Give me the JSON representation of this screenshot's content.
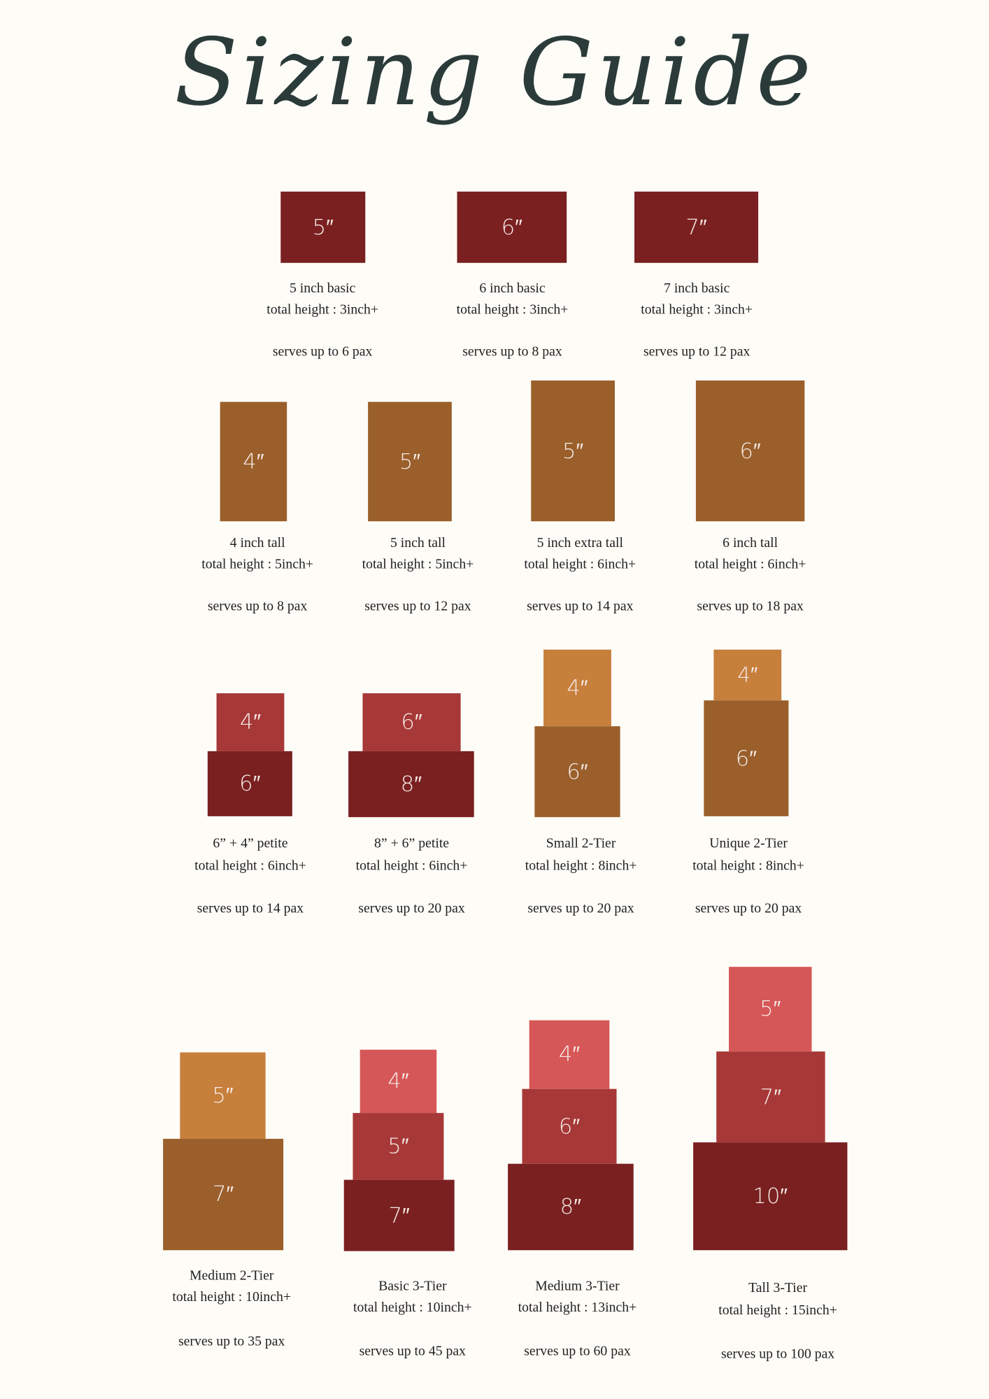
{
  "title": "Sizing Guide",
  "colors": {
    "background": "#fefcf7",
    "title": "#2b3b3a",
    "dark_red": "#7a2020",
    "brown": "#9a5f2b",
    "orange": "#c77f3c",
    "red": "#a73838",
    "coral": "#d65757"
  },
  "cakes": [
    {
      "name": "5 inch basic",
      "height": "total height : 3inch+",
      "serves": "serves up to 6 pax",
      "tiers": [
        {
          "label": "5″",
          "color": "#7a2020"
        }
      ]
    },
    {
      "name": "6 inch basic",
      "height": "total height : 3inch+",
      "serves": "serves up to 8 pax",
      "tiers": [
        {
          "label": "6″",
          "color": "#7a2020"
        }
      ]
    },
    {
      "name": "7 inch basic",
      "height": "total height : 3inch+",
      "serves": "serves up to 12 pax",
      "tiers": [
        {
          "label": "7″",
          "color": "#7a2020"
        }
      ]
    },
    {
      "name": "4 inch tall",
      "height": "total height : 5inch+",
      "serves": "serves up to 8 pax",
      "tiers": [
        {
          "label": "4″",
          "color": "#9a5f2b"
        }
      ]
    },
    {
      "name": "5 inch tall",
      "height": "total height : 5inch+",
      "serves": "serves up to 12 pax",
      "tiers": [
        {
          "label": "5″",
          "color": "#9a5f2b"
        }
      ]
    },
    {
      "name": "5 inch extra tall",
      "height": "total height : 6inch+",
      "serves": "serves up to 14 pax",
      "tiers": [
        {
          "label": "5″",
          "color": "#9a5f2b"
        }
      ]
    },
    {
      "name": "6 inch tall",
      "height": "total height : 6inch+",
      "serves": "serves up to 18 pax",
      "tiers": [
        {
          "label": "6″",
          "color": "#9a5f2b"
        }
      ]
    },
    {
      "name": "6” + 4” petite",
      "height": "total height : 6inch+",
      "serves": "serves up to 14 pax",
      "tiers": [
        {
          "label": "4″",
          "color": "#a73838"
        },
        {
          "label": "6″",
          "color": "#7a2020"
        }
      ]
    },
    {
      "name": "8” + 6” petite",
      "height": "total height : 6inch+",
      "serves": "serves up to 20 pax",
      "tiers": [
        {
          "label": "6″",
          "color": "#a73838"
        },
        {
          "label": "8″",
          "color": "#7a2020"
        }
      ]
    },
    {
      "name": "Small 2-Tier",
      "height": "total height : 8inch+",
      "serves": "serves up to 20 pax",
      "tiers": [
        {
          "label": "4″",
          "color": "#c77f3c"
        },
        {
          "label": "6″",
          "color": "#9a5f2b"
        }
      ]
    },
    {
      "name": "Unique 2-Tier",
      "height": "total height : 8inch+",
      "serves": "serves up to 20 pax",
      "tiers": [
        {
          "label": "4″",
          "color": "#c77f3c"
        },
        {
          "label": "6″",
          "color": "#9a5f2b"
        }
      ]
    },
    {
      "name": "Medium 2-Tier",
      "height": "total height : 10inch+",
      "serves": "serves up to 35 pax",
      "tiers": [
        {
          "label": "5″",
          "color": "#c77f3c"
        },
        {
          "label": "7″",
          "color": "#9a5f2b"
        }
      ]
    },
    {
      "name": "Basic 3-Tier",
      "height": "total height : 10inch+",
      "serves": "serves up to 45 pax",
      "tiers": [
        {
          "label": "4″",
          "color": "#d65757"
        },
        {
          "label": "5″",
          "color": "#a73838"
        },
        {
          "label": "7″",
          "color": "#7a2020"
        }
      ]
    },
    {
      "name": "Medium 3-Tier",
      "height": "total height : 13inch+",
      "serves": "serves up to 60 pax",
      "tiers": [
        {
          "label": "4″",
          "color": "#d65757"
        },
        {
          "label": "6″",
          "color": "#a73838"
        },
        {
          "label": "8″",
          "color": "#7a2020"
        }
      ]
    },
    {
      "name": "Tall 3-Tier",
      "height": "total height : 15inch+",
      "serves": "serves up to 100 pax",
      "tiers": [
        {
          "label": "5″",
          "color": "#d65757"
        },
        {
          "label": "7″",
          "color": "#a73838"
        },
        {
          "label": "10″",
          "color": "#7a2020"
        }
      ]
    }
  ]
}
